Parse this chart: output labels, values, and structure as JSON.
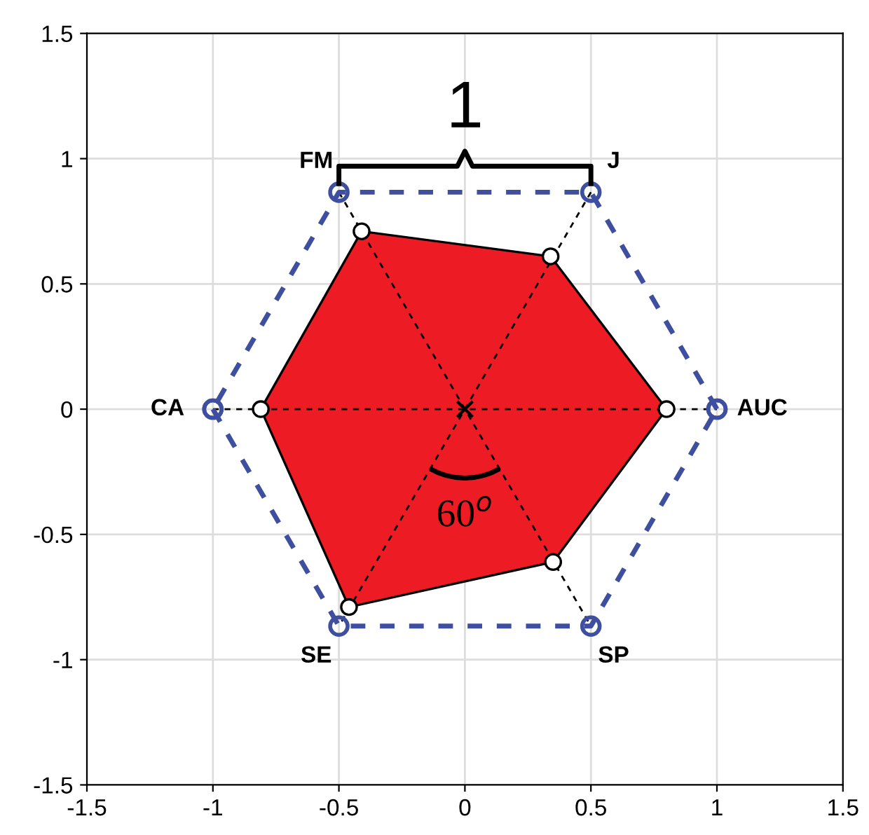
{
  "chart_data": {
    "type": "line",
    "series": [
      {
        "type": "line",
        "color": "#000000",
        "line_style": "dashed",
        "marker": "none",
        "x": [
          -1,
          1
        ],
        "values": [
          0,
          0
        ]
      },
      {
        "color": "#000000",
        "line_style": "dashed",
        "marker": "none",
        "x": [
          -0.5,
          0.5
        ],
        "values": [
          0.866,
          -0.866
        ]
      },
      {
        "color": "#000000",
        "line_style": "dashed",
        "marker": "none",
        "x": [
          0.5,
          -0.5
        ],
        "values": [
          0.866,
          -0.866
        ]
      },
      {
        "type": "area",
        "color": "#ed1c24",
        "marker": "circle",
        "x": [
          0.8,
          0.34,
          -0.41,
          -0.81,
          -0.46,
          0.35
        ],
        "values": [
          0,
          0.61,
          0.71,
          0,
          -0.79,
          -0.61
        ]
      },
      {
        "type": "line",
        "color": "#3f4fa0",
        "line_style": "dashed",
        "marker": "circle",
        "x": [
          1,
          0.5,
          -0.5,
          -1
        ],
        "values": [
          0,
          0.866,
          0.866,
          0
        ]
      },
      {
        "type": "line",
        "color": "#3f4fa0",
        "line_style": "dashed",
        "marker": "circle",
        "x": [
          -1,
          -0.5,
          0.5,
          1
        ],
        "values": [
          0,
          -0.866,
          -0.866,
          0
        ]
      },
      {
        "type": "scatter",
        "color": "#000000",
        "marker": "cross",
        "x": [
          0
        ],
        "values": [
          0
        ]
      }
    ],
    "annotations": [
      {
        "text": "AUC",
        "x": 1,
        "y": 0
      },
      {
        "text": "J",
        "x": 0.5,
        "y": 0.866
      },
      {
        "text": "FM",
        "x": -0.5,
        "y": 0.866
      },
      {
        "text": "CA",
        "x": -1,
        "y": 0
      },
      {
        "text": "SE",
        "x": -0.5,
        "y": -0.866
      },
      {
        "text": "SP",
        "x": 0.5,
        "y": -0.866
      },
      "1",
      "60$^{o}$"
    ],
    "xlim": [
      -1.5,
      1.5
    ],
    "ylim": [
      -1.5,
      1.5
    ],
    "xticks": [
      -1.5,
      -1,
      -0.5,
      0,
      0.5,
      1,
      1.5
    ],
    "yticks": [
      -1.5,
      -1,
      -0.5,
      0,
      0.5,
      1,
      1.5
    ],
    "grid": true
  }
}
